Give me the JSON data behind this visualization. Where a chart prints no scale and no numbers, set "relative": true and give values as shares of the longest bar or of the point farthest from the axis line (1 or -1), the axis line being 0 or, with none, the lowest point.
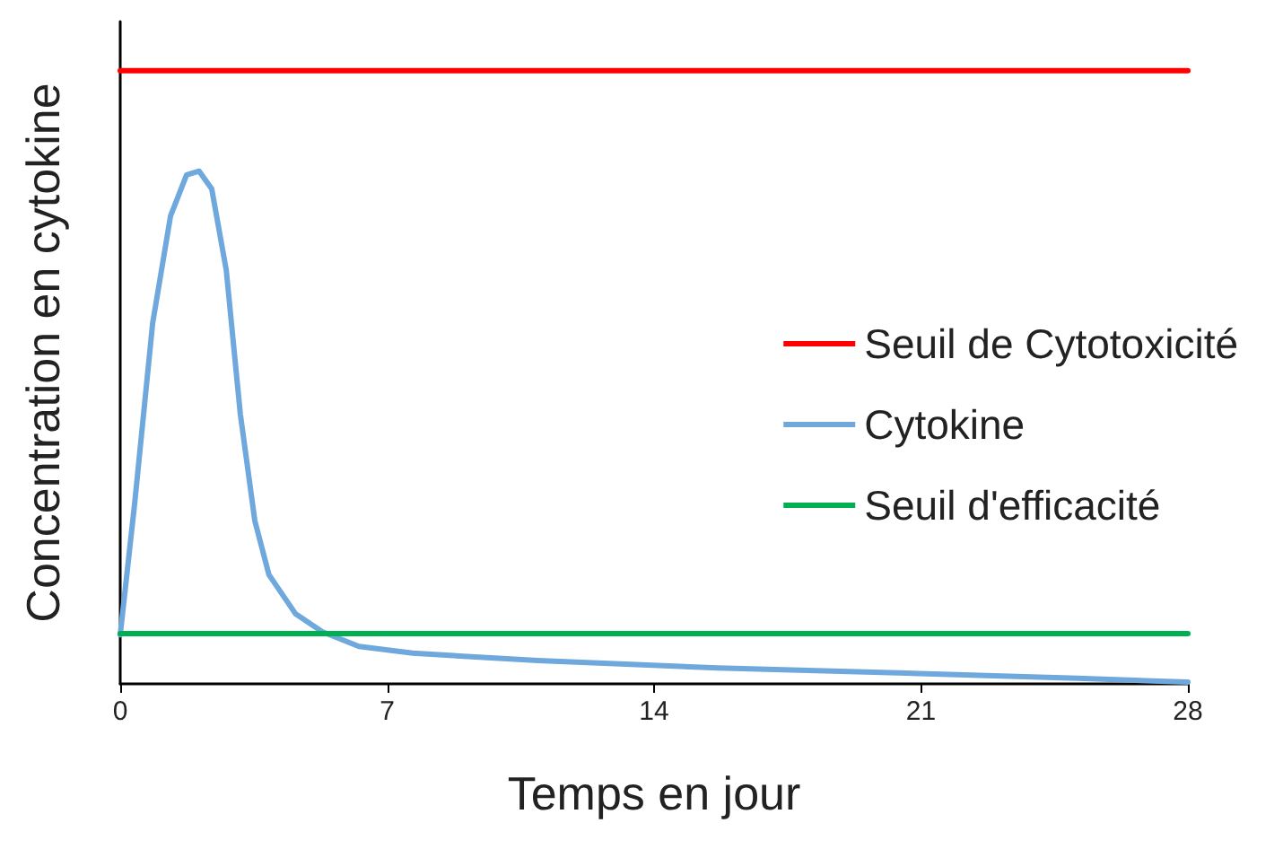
{
  "chart_data": {
    "type": "line",
    "relative": true,
    "xlabel": "Temps en jour",
    "ylabel": "Concentration en cytokine",
    "xlim": [
      0,
      28
    ],
    "xticks": [
      0,
      7,
      14,
      21,
      28
    ],
    "grid": false,
    "legend": "right",
    "marker": "none",
    "line_style": "solid",
    "series": [
      {
        "name": "Seuil de Cytotoxicité",
        "color": "#ff0000",
        "x": [
          0,
          28
        ],
        "values": [
          1,
          1
        ]
      },
      {
        "name": "Cytokine",
        "color": "#6fa8dc",
        "x": [
          0,
          0.38,
          0.85,
          1.32,
          1.74,
          2.07,
          2.4,
          2.78,
          3.15,
          3.53,
          3.9,
          4.6,
          5.3,
          6.26,
          7.67,
          10.96,
          15.67,
          20.4,
          25.1,
          28
        ],
        "values": [
          0.08,
          0.295,
          0.588,
          0.763,
          0.83,
          0.836,
          0.807,
          0.675,
          0.44,
          0.266,
          0.178,
          0.114,
          0.085,
          0.061,
          0.05,
          0.038,
          0.026,
          0.018,
          0.009,
          0.003
        ]
      },
      {
        "name": "Seuil d'efficacité",
        "color": "#00b050",
        "x": [
          0,
          28
        ],
        "values": [
          0.082,
          0.082
        ]
      }
    ]
  }
}
